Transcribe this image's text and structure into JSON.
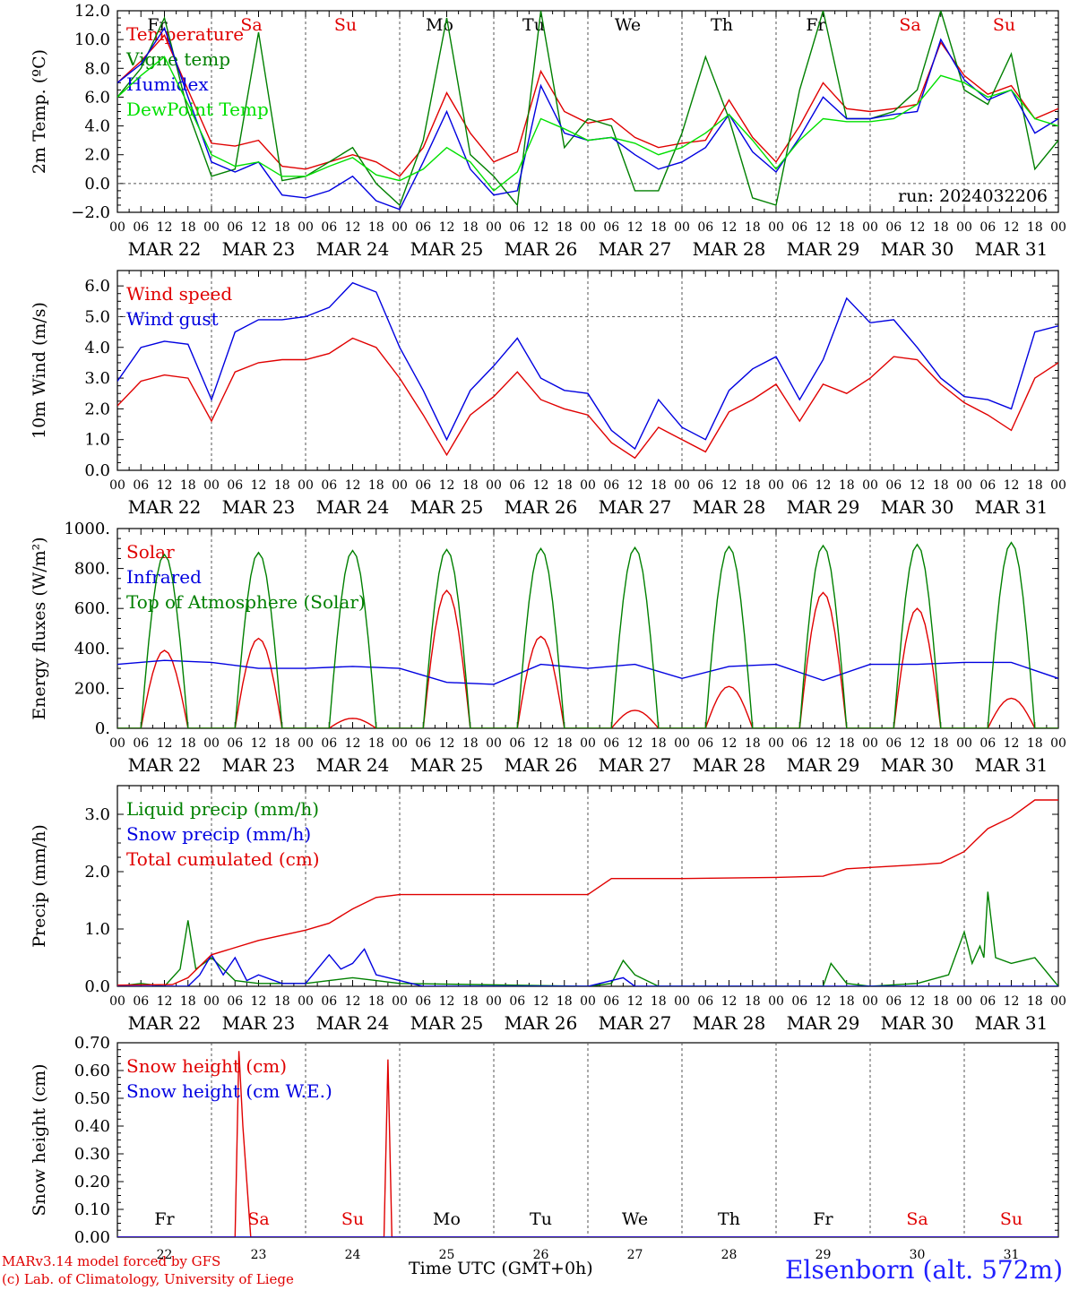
{
  "chart_data": [
    {
      "type": "line",
      "ylabel": "2m Temp. (ºC)",
      "ylim": [
        -2,
        12
      ],
      "yticks": [
        "−2.0",
        "0.0",
        "2.0",
        "4.0",
        "6.0",
        "8.0",
        "10.0",
        "12.0"
      ],
      "reference_line": 0,
      "weekdays": [
        "Fr",
        "Sa",
        "Su",
        "Mo",
        "Tu",
        "We",
        "Th",
        "Fr",
        "Sa",
        "Su"
      ],
      "weekday_colors": [
        "#000000",
        "#e00000",
        "#e00000",
        "#000000",
        "#000000",
        "#000000",
        "#000000",
        "#000000",
        "#e00000",
        "#e00000"
      ],
      "hour_ticks": [
        "00",
        "06",
        "12",
        "18"
      ],
      "date_labels": [
        "MAR 22",
        "MAR 23",
        "MAR 24",
        "MAR 25",
        "MAR 26",
        "MAR 27",
        "MAR 28",
        "MAR 29",
        "MAR 30",
        "MAR 31"
      ],
      "annotation": "run: 2024032206",
      "legend_position": "top-left",
      "series": [
        {
          "name": "Temperature",
          "color": "#e00000",
          "x": [
            0,
            6,
            12,
            18,
            24,
            30,
            36,
            42,
            48,
            54,
            60,
            66,
            72,
            78,
            84,
            90,
            96,
            102,
            108,
            114,
            120,
            126,
            132,
            138,
            144,
            150,
            156,
            162,
            168,
            174,
            180,
            186,
            192,
            198,
            204,
            210,
            216,
            222,
            228,
            234,
            240
          ],
          "values": [
            7.0,
            8.5,
            10.3,
            6.5,
            2.8,
            2.6,
            3.0,
            1.2,
            1.0,
            1.5,
            2.0,
            1.5,
            0.5,
            2.5,
            6.3,
            3.5,
            1.5,
            2.2,
            7.8,
            5.0,
            4.2,
            4.5,
            3.2,
            2.5,
            2.8,
            3.0,
            5.8,
            3.2,
            1.5,
            4.0,
            7.0,
            5.2,
            5.0,
            5.2,
            5.5,
            9.8,
            7.5,
            6.2,
            6.8,
            4.5,
            5.2
          ]
        },
        {
          "name": "Vigne temp",
          "color": "#008000",
          "x": [
            0,
            6,
            12,
            18,
            24,
            30,
            36,
            42,
            48,
            54,
            60,
            66,
            72,
            78,
            84,
            90,
            96,
            102,
            108,
            114,
            120,
            126,
            132,
            138,
            144,
            150,
            156,
            162,
            168,
            174,
            180,
            186,
            192,
            198,
            204,
            210,
            216,
            222,
            228,
            234,
            240
          ],
          "values": [
            6.0,
            8.0,
            11.5,
            5.0,
            0.5,
            1.0,
            10.5,
            0.2,
            0.5,
            1.5,
            2.5,
            0.0,
            -1.5,
            3.0,
            11.5,
            2.0,
            0.5,
            -1.5,
            12.0,
            2.5,
            4.5,
            4.0,
            -0.5,
            -0.5,
            3.5,
            8.8,
            4.5,
            -1.0,
            -1.5,
            6.5,
            12.0,
            4.5,
            4.5,
            5.0,
            6.5,
            12.0,
            6.5,
            5.5,
            9.0,
            1.0,
            3.0
          ]
        },
        {
          "name": "Humidex",
          "color": "#0000e0",
          "x": [
            0,
            6,
            12,
            18,
            24,
            30,
            36,
            42,
            48,
            54,
            60,
            66,
            72,
            78,
            84,
            90,
            96,
            102,
            108,
            114,
            120,
            126,
            132,
            138,
            144,
            150,
            156,
            162,
            168,
            174,
            180,
            186,
            192,
            198,
            204,
            210,
            216,
            222,
            228,
            234,
            240
          ],
          "values": [
            7.0,
            8.3,
            10.8,
            6.0,
            1.5,
            0.8,
            1.5,
            -0.8,
            -1.0,
            -0.5,
            0.5,
            -1.2,
            -1.8,
            1.5,
            5.0,
            1.0,
            -0.8,
            -0.5,
            6.8,
            3.5,
            3.0,
            3.2,
            2.0,
            1.0,
            1.5,
            2.5,
            4.8,
            2.2,
            0.8,
            3.2,
            6.0,
            4.5,
            4.5,
            4.8,
            5.0,
            10.0,
            7.2,
            5.8,
            6.5,
            3.5,
            4.5
          ]
        },
        {
          "name": "DewPoint Temp",
          "color": "#00e000",
          "x": [
            0,
            6,
            12,
            18,
            24,
            30,
            36,
            42,
            48,
            54,
            60,
            66,
            72,
            78,
            84,
            90,
            96,
            102,
            108,
            114,
            120,
            126,
            132,
            138,
            144,
            150,
            156,
            162,
            168,
            174,
            180,
            186,
            192,
            198,
            204,
            210,
            216,
            222,
            228,
            234,
            240
          ],
          "values": [
            6.0,
            7.5,
            8.8,
            5.5,
            2.0,
            1.2,
            1.5,
            0.5,
            0.5,
            1.2,
            1.8,
            0.6,
            0.2,
            1.0,
            2.5,
            1.5,
            -0.5,
            0.8,
            4.5,
            3.8,
            3.0,
            3.2,
            2.8,
            2.0,
            2.5,
            3.5,
            4.8,
            3.0,
            1.0,
            3.0,
            4.5,
            4.3,
            4.3,
            4.5,
            5.5,
            7.5,
            7.0,
            6.0,
            6.5,
            4.5,
            4.0
          ]
        }
      ]
    },
    {
      "type": "line",
      "ylabel": "10m Wind (m/s)",
      "ylim": [
        0,
        6.5
      ],
      "yticks": [
        "0.0",
        "1.0",
        "2.0",
        "3.0",
        "4.0",
        "5.0",
        "6.0"
      ],
      "reference_line": 5,
      "hour_ticks": [
        "00",
        "06",
        "12",
        "18"
      ],
      "date_labels": [
        "MAR 22",
        "MAR 23",
        "MAR 24",
        "MAR 25",
        "MAR 26",
        "MAR 27",
        "MAR 28",
        "MAR 29",
        "MAR 30",
        "MAR 31"
      ],
      "legend_position": "top-left",
      "series": [
        {
          "name": "Wind speed",
          "color": "#e00000",
          "x": [
            0,
            6,
            12,
            18,
            24,
            30,
            36,
            42,
            48,
            54,
            60,
            66,
            72,
            78,
            84,
            90,
            96,
            102,
            108,
            114,
            120,
            126,
            132,
            138,
            144,
            150,
            156,
            162,
            168,
            174,
            180,
            186,
            192,
            198,
            204,
            210,
            216,
            222,
            228,
            234,
            240
          ],
          "values": [
            2.1,
            2.9,
            3.1,
            3.0,
            1.6,
            3.2,
            3.5,
            3.6,
            3.6,
            3.8,
            4.3,
            4.0,
            3.0,
            1.8,
            0.5,
            1.8,
            2.4,
            3.2,
            2.3,
            2.0,
            1.8,
            0.9,
            0.4,
            1.4,
            1.0,
            0.6,
            1.9,
            2.3,
            2.8,
            1.6,
            2.8,
            2.5,
            3.0,
            3.7,
            3.6,
            2.8,
            2.2,
            1.8,
            1.3,
            3.0,
            3.5
          ]
        },
        {
          "name": "Wind gust",
          "color": "#0000e0",
          "x": [
            0,
            6,
            12,
            18,
            24,
            30,
            36,
            42,
            48,
            54,
            60,
            66,
            72,
            78,
            84,
            90,
            96,
            102,
            108,
            114,
            120,
            126,
            132,
            138,
            144,
            150,
            156,
            162,
            168,
            174,
            180,
            186,
            192,
            198,
            204,
            210,
            216,
            222,
            228,
            234,
            240
          ],
          "values": [
            2.9,
            4.0,
            4.2,
            4.1,
            2.3,
            4.5,
            4.9,
            4.9,
            5.0,
            5.3,
            6.1,
            5.8,
            4.0,
            2.6,
            1.0,
            2.6,
            3.4,
            4.3,
            3.0,
            2.6,
            2.5,
            1.3,
            0.7,
            2.3,
            1.4,
            1.0,
            2.6,
            3.3,
            3.7,
            2.3,
            3.6,
            5.6,
            4.8,
            4.9,
            4.0,
            3.0,
            2.4,
            2.3,
            2.0,
            4.5,
            4.7
          ]
        }
      ]
    },
    {
      "type": "line",
      "ylabel": "Energy fluxes (W/m²)",
      "ylim": [
        0,
        1000
      ],
      "yticks": [
        "0.",
        "200.",
        "400.",
        "600.",
        "800.",
        "1000."
      ],
      "hour_ticks": [
        "00",
        "06",
        "12",
        "18"
      ],
      "date_labels": [
        "MAR 22",
        "MAR 23",
        "MAR 24",
        "MAR 25",
        "MAR 26",
        "MAR 27",
        "MAR 28",
        "MAR 29",
        "MAR 30",
        "MAR 31"
      ],
      "legend_position": "top-left",
      "series": [
        {
          "name": "Solar",
          "color": "#e00000",
          "peak_per_day": [
            390,
            450,
            50,
            690,
            460,
            90,
            210,
            680,
            600,
            150
          ]
        },
        {
          "name": "Infrared",
          "color": "#0000e0",
          "x": [
            0,
            12,
            24,
            36,
            48,
            60,
            72,
            84,
            96,
            108,
            120,
            132,
            144,
            156,
            168,
            180,
            192,
            204,
            216,
            228,
            240
          ],
          "values": [
            320,
            340,
            330,
            300,
            300,
            310,
            300,
            230,
            220,
            320,
            300,
            320,
            250,
            310,
            320,
            240,
            320,
            320,
            330,
            330,
            250
          ]
        },
        {
          "name": "Top of Atmosphere (Solar)",
          "color": "#008000",
          "peak_per_day": [
            870,
            880,
            890,
            895,
            900,
            905,
            910,
            915,
            920,
            930
          ]
        }
      ]
    },
    {
      "type": "line",
      "ylabel": "Precip (mm/h)",
      "ylim": [
        0,
        3.5
      ],
      "yticks": [
        "0.0",
        "1.0",
        "2.0",
        "3.0"
      ],
      "hour_ticks": [
        "00",
        "06",
        "12",
        "18"
      ],
      "date_labels": [
        "MAR 22",
        "MAR 23",
        "MAR 24",
        "MAR 25",
        "MAR 26",
        "MAR 27",
        "MAR 28",
        "MAR 29",
        "MAR 30",
        "MAR 31"
      ],
      "legend_position": "top-left",
      "series": [
        {
          "name": "Liquid precip (mm/h)",
          "color": "#008000",
          "x": [
            0,
            6,
            12,
            16,
            18,
            20,
            22,
            24,
            30,
            36,
            42,
            48,
            54,
            60,
            66,
            72,
            120,
            126,
            129,
            132,
            138,
            180,
            182,
            186,
            192,
            204,
            212,
            216,
            218,
            220,
            221,
            222,
            224,
            228,
            234,
            240
          ],
          "values": [
            0,
            0.05,
            0,
            0.3,
            1.15,
            0.3,
            0.4,
            0.5,
            0.1,
            0.05,
            0.05,
            0.05,
            0.1,
            0.15,
            0.1,
            0.05,
            0,
            0.05,
            0.45,
            0.2,
            0,
            0,
            0.4,
            0.05,
            0,
            0.05,
            0.2,
            0.95,
            0.4,
            0.7,
            0.5,
            1.65,
            0.5,
            0.4,
            0.5,
            0
          ]
        },
        {
          "name": "Snow precip (mm/h)",
          "color": "#0000e0",
          "x": [
            0,
            18,
            21,
            24,
            27,
            30,
            33,
            36,
            42,
            48,
            51,
            54,
            57,
            60,
            63,
            66,
            72,
            78,
            120,
            129,
            132,
            240
          ],
          "values": [
            0,
            0,
            0.2,
            0.55,
            0.2,
            0.5,
            0.1,
            0.2,
            0.05,
            0.05,
            0.3,
            0.55,
            0.3,
            0.4,
            0.65,
            0.2,
            0.1,
            0,
            0,
            0.15,
            0,
            0
          ]
        },
        {
          "name": "Total cumulated (cm)",
          "color": "#e00000",
          "x": [
            0,
            14,
            18,
            24,
            36,
            48,
            54,
            60,
            66,
            72,
            84,
            108,
            120,
            126,
            132,
            144,
            168,
            180,
            186,
            204,
            210,
            216,
            219,
            222,
            228,
            234,
            240
          ],
          "values": [
            0.02,
            0.03,
            0.15,
            0.55,
            0.8,
            0.98,
            1.1,
            1.35,
            1.55,
            1.6,
            1.6,
            1.6,
            1.6,
            1.88,
            1.88,
            1.88,
            1.9,
            1.92,
            2.05,
            2.12,
            2.15,
            2.35,
            2.55,
            2.75,
            2.95,
            3.25,
            3.25
          ]
        }
      ]
    },
    {
      "type": "line",
      "ylabel": "Snow height (cm)",
      "ylim": [
        0,
        0.7
      ],
      "yticks": [
        "0.00",
        "0.10",
        "0.20",
        "0.30",
        "0.40",
        "0.50",
        "0.60",
        "0.70"
      ],
      "weekdays": [
        "Fr",
        "Sa",
        "Su",
        "Mo",
        "Tu",
        "We",
        "Th",
        "Fr",
        "Sa",
        "Su"
      ],
      "day_numbers": [
        "22",
        "23",
        "24",
        "25",
        "26",
        "27",
        "28",
        "29",
        "30",
        "31"
      ],
      "xlabel": "Time UTC (GMT+0h)",
      "legend_position": "top-left",
      "series": [
        {
          "name": "Snow height (cm)",
          "color": "#e00000",
          "x": [
            0,
            30,
            31,
            32,
            34,
            68,
            69,
            70,
            72,
            240
          ],
          "values": [
            0,
            0,
            0.67,
            0.4,
            0,
            0,
            0.64,
            0,
            0,
            0
          ]
        },
        {
          "name": "Snow height (cm W.E.)",
          "color": "#0000e0",
          "x": [
            0,
            240
          ],
          "values": [
            0,
            0
          ]
        }
      ]
    }
  ],
  "footer": {
    "credit_line1": "MARv3.14 model forced by GFS",
    "credit_line2": "(c) Lab. of Climatology, University of Liege",
    "station": "Elsenborn (alt. 572m)",
    "xlabel": "Time UTC (GMT+0h)"
  }
}
